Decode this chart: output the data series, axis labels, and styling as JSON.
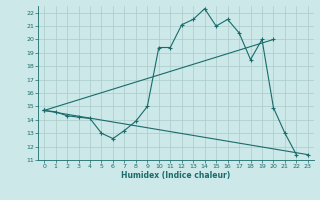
{
  "xlabel": "Humidex (Indice chaleur)",
  "bg_color": "#cce8e8",
  "grid_color": "#aacccc",
  "line_color": "#1a6b6b",
  "xlim": [
    -0.5,
    23.5
  ],
  "ylim": [
    11,
    22.5
  ],
  "xticks": [
    0,
    1,
    2,
    3,
    4,
    5,
    6,
    7,
    8,
    9,
    10,
    11,
    12,
    13,
    14,
    15,
    16,
    17,
    18,
    19,
    20,
    21,
    22,
    23
  ],
  "yticks": [
    11,
    12,
    13,
    14,
    15,
    16,
    17,
    18,
    19,
    20,
    21,
    22
  ],
  "line1_x": [
    0,
    1,
    2,
    3,
    4,
    5,
    6,
    7,
    8,
    9,
    10,
    11,
    12,
    13,
    14,
    15,
    16,
    17,
    18,
    19,
    20,
    21,
    22
  ],
  "line1_y": [
    14.7,
    14.6,
    14.3,
    14.2,
    14.1,
    13.0,
    12.6,
    13.2,
    13.9,
    15.0,
    19.4,
    19.4,
    21.1,
    21.5,
    22.3,
    21.0,
    21.5,
    20.5,
    18.5,
    20.0,
    14.9,
    13.0,
    11.4
  ],
  "line2_x": [
    0,
    20
  ],
  "line2_y": [
    14.7,
    20.0
  ],
  "line3_x": [
    0,
    23
  ],
  "line3_y": [
    14.7,
    11.4
  ]
}
